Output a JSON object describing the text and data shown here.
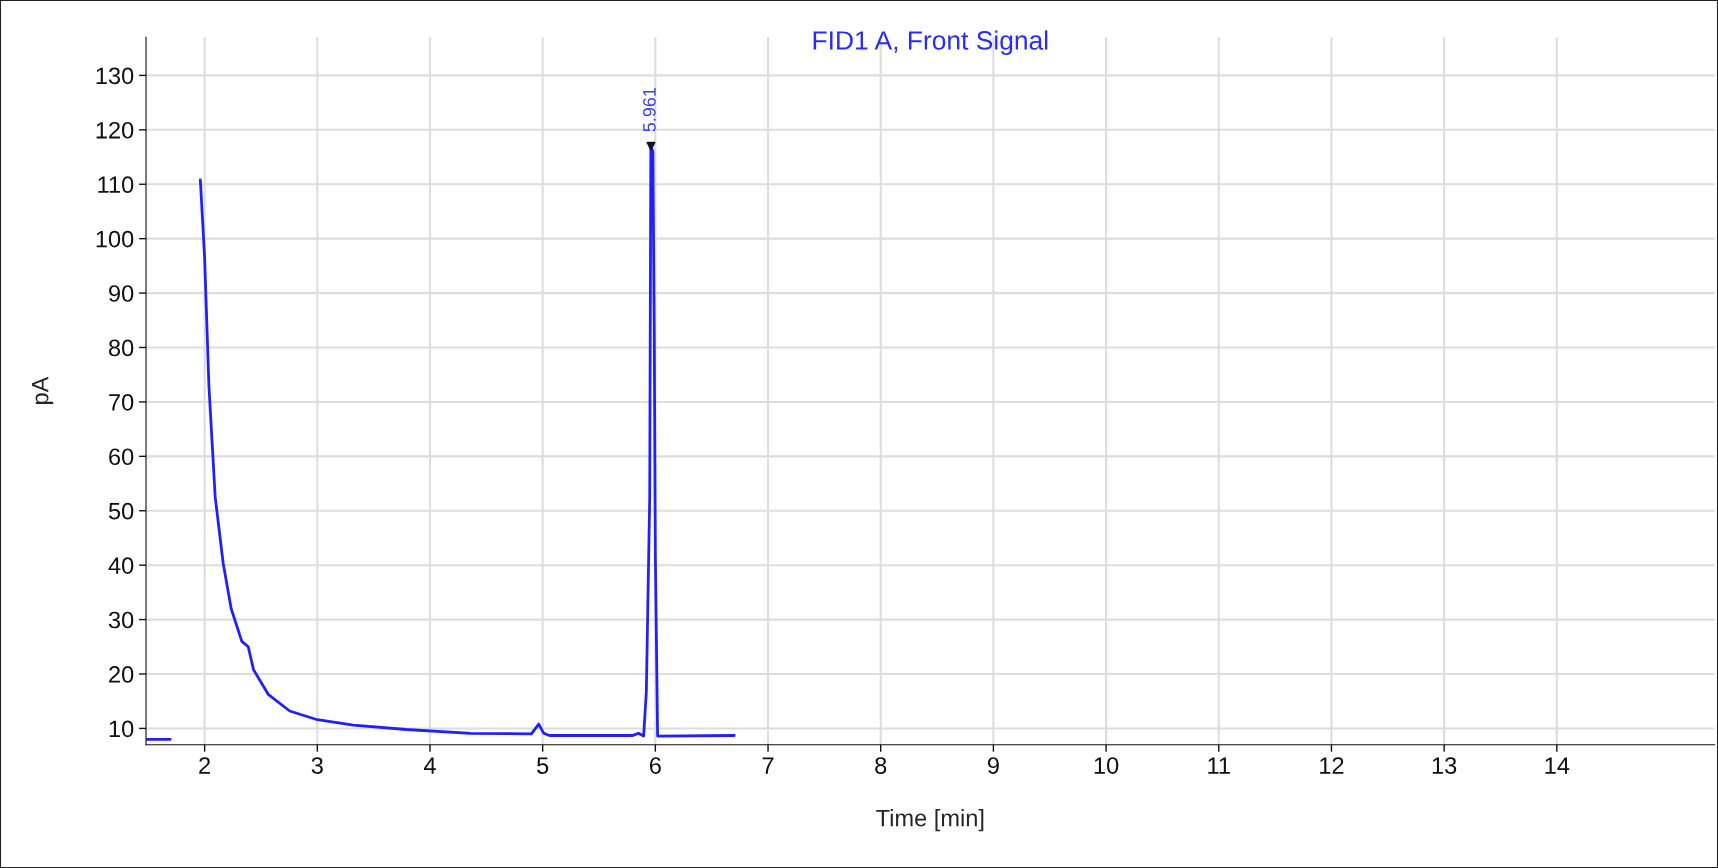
{
  "chart_data": {
    "type": "line",
    "title": "FID1 A, Front Signal",
    "xlabel": "Time [min]",
    "ylabel": "pA",
    "x": [
      1.48,
      1.695,
      1.7,
      1.701,
      1.943,
      1.962,
      2.0,
      2.038,
      2.094,
      2.165,
      2.236,
      2.33,
      2.387,
      2.434,
      2.567,
      2.755,
      3.0,
      3.32,
      3.79,
      4.36,
      4.9,
      4.965,
      5.01,
      5.06,
      5.8,
      5.85,
      5.896,
      5.92,
      5.95,
      5.96,
      5.978,
      5.99,
      6.0,
      6.02,
      6.7
    ],
    "series": [
      {
        "color": "#1f1fff",
        "values": [
          8.0,
          8.0,
          null,
          null,
          null,
          110.8,
          96.5,
          73,
          52.5,
          40.3,
          32,
          26,
          25,
          20.8,
          16.2,
          13.2,
          11.6,
          10.6,
          9.8,
          9.1,
          9.0,
          10.8,
          9.1,
          8.7,
          8.7,
          9.1,
          8.6,
          16.7,
          52.5,
          117,
          116,
          83,
          42,
          8.6,
          8.7
        ]
      }
    ],
    "annotations": [
      {
        "text": "5.961",
        "x": 5.961,
        "y": 117
      }
    ],
    "xlim": [
      1.48,
      15.4
    ],
    "ylim": [
      7,
      137
    ],
    "xticks": [
      2,
      3,
      4,
      5,
      6,
      7,
      8,
      9,
      10,
      11,
      12,
      13,
      14
    ],
    "yticks": [
      10,
      20,
      30,
      40,
      50,
      60,
      70,
      80,
      90,
      100,
      110,
      120,
      130
    ],
    "grid": true,
    "legend": false,
    "line_style": "solid",
    "marker": "none"
  }
}
